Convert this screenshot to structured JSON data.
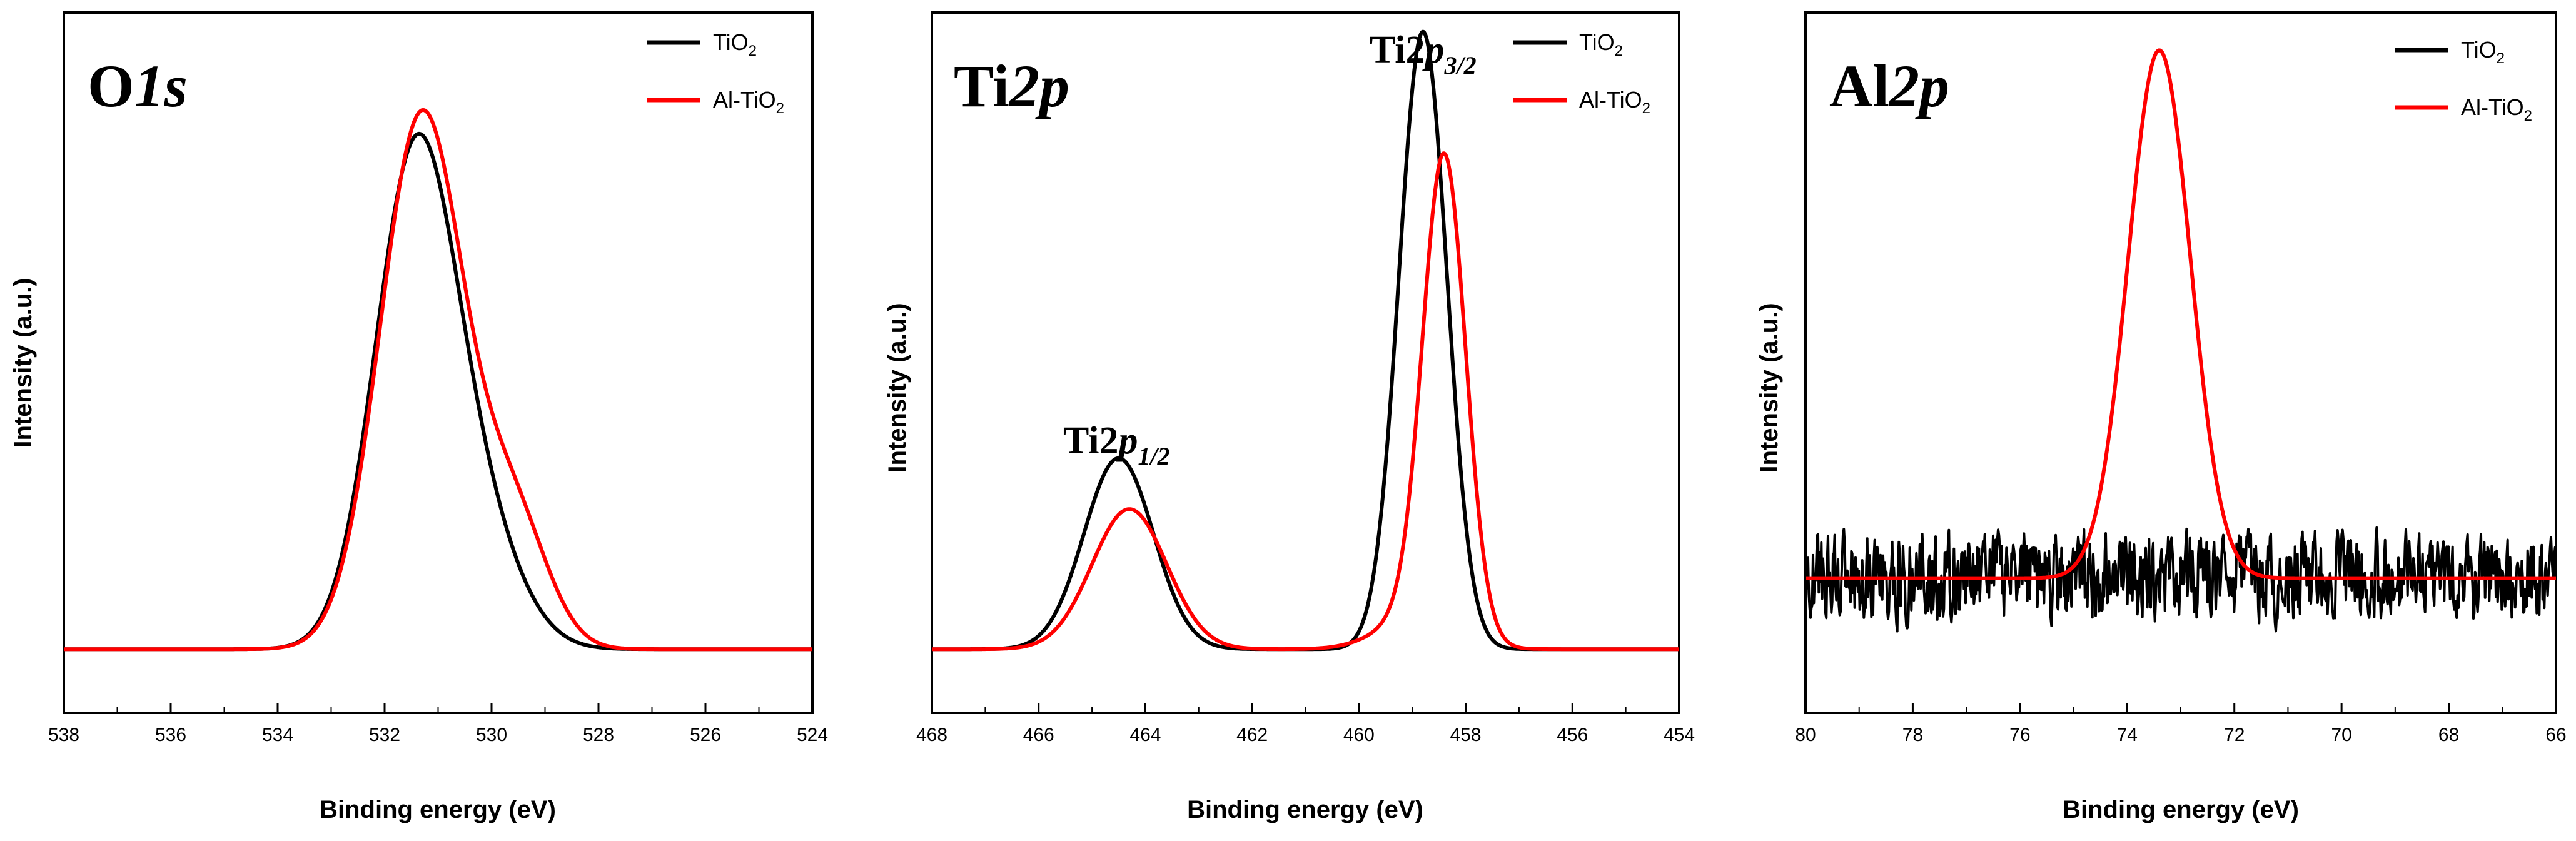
{
  "chart_data": [
    {
      "type": "line",
      "title_main": "O",
      "title_italic": "1s",
      "xlabel": "Binding energy (eV)",
      "ylabel": "Intensity (a.u.)",
      "xlim": [
        538,
        524
      ],
      "ylim": [
        -0.1,
        1.0
      ],
      "xticks": [
        538,
        536,
        534,
        532,
        530,
        528,
        526,
        524
      ],
      "legend_position": "top-right",
      "legend": [
        {
          "name_main": "TiO",
          "name_sub": "2",
          "color": "#000000"
        },
        {
          "name_main": "Al-TiO",
          "name_sub": "2",
          "color": "#ff0000"
        }
      ],
      "series": [
        {
          "name": "TiO2",
          "color": "#000000",
          "components": [
            {
              "center": 531.45,
              "height": 0.74,
              "width": 0.75
            },
            {
              "center": 530.3,
              "height": 0.18,
              "width": 0.8
            }
          ],
          "noise": 0
        },
        {
          "name": "Al-TiO2",
          "color": "#ff0000",
          "components": [
            {
              "center": 531.3,
              "height": 0.84,
              "width": 0.78
            },
            {
              "center": 529.6,
              "height": 0.2,
              "width": 0.65
            }
          ],
          "noise": 0
        }
      ],
      "annotations": []
    },
    {
      "type": "line",
      "title_main": "Ti",
      "title_italic": "2p",
      "xlabel": "Binding energy (eV)",
      "ylabel": "Intensity (a.u.)",
      "xlim": [
        468,
        454
      ],
      "ylim": [
        -0.1,
        1.0
      ],
      "xticks": [
        468,
        466,
        464,
        462,
        460,
        458,
        456,
        454
      ],
      "legend_position": "top-right",
      "legend": [
        {
          "name_main": "TiO",
          "name_sub": "2",
          "color": "#000000"
        },
        {
          "name_main": "Al-TiO",
          "name_sub": "2",
          "color": "#ff0000"
        }
      ],
      "series": [
        {
          "name": "TiO2",
          "color": "#000000",
          "components": [
            {
              "center": 458.8,
              "height": 0.97,
              "width": 0.45
            },
            {
              "center": 464.5,
              "height": 0.3,
              "width": 0.65
            }
          ],
          "noise": 0
        },
        {
          "name": "Al-TiO2",
          "color": "#ff0000",
          "components": [
            {
              "center": 458.4,
              "height": 0.74,
              "width": 0.4
            },
            {
              "center": 464.3,
              "height": 0.22,
              "width": 0.7
            },
            {
              "center": 458.9,
              "height": 0.05,
              "width": 0.7
            }
          ],
          "noise": 0
        }
      ],
      "annotations": [
        {
          "label_main": "Ti2",
          "label_italic": "p",
          "label_sub": "1/2",
          "x": 465.2,
          "y": 0.38
        },
        {
          "label_main": "Ti2",
          "label_italic": "p",
          "label_sub": "3/2",
          "x": 459.6,
          "y": 1.04
        }
      ]
    },
    {
      "type": "line",
      "title_main": "Al",
      "title_italic": "2p",
      "xlabel": "Binding energy (eV)",
      "ylabel": "Intensity (a.u.)",
      "xlim": [
        80,
        66
      ],
      "ylim": [
        -0.25,
        1.05
      ],
      "xticks": [
        80,
        78,
        76,
        74,
        72,
        70,
        68,
        66
      ],
      "legend_position": "top-right",
      "legend": [
        {
          "name_main": "TiO",
          "name_sub": "2",
          "color": "#000000"
        },
        {
          "name_main": "Al-TiO",
          "name_sub": "2",
          "color": "#ff0000"
        }
      ],
      "series": [
        {
          "name": "TiO2",
          "color": "#000000",
          "components": [],
          "noise": 0.07
        },
        {
          "name": "Al-TiO2",
          "color": "#ff0000",
          "components": [
            {
              "center": 73.4,
              "height": 0.98,
              "width": 0.58
            }
          ],
          "noise": 0
        }
      ],
      "annotations": []
    }
  ]
}
